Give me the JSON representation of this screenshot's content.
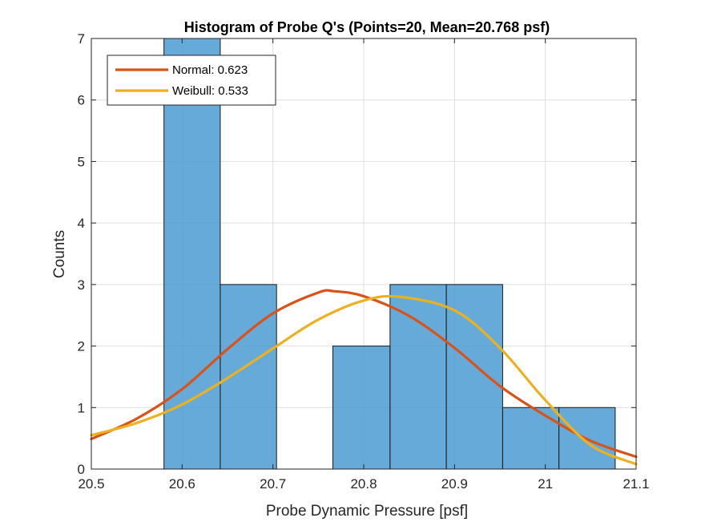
{
  "chart_data": {
    "type": "bar",
    "title": "Histogram of Probe Q's (Points=20, Mean=20.768 psf)",
    "xlabel": "Probe Dynamic Pressure [psf]",
    "ylabel": "Counts",
    "xlim": [
      20.5,
      21.1
    ],
    "ylim": [
      0,
      7
    ],
    "xticks": [
      {
        "v": 20.5,
        "label": "20.5"
      },
      {
        "v": 20.6,
        "label": "20.6"
      },
      {
        "v": 20.7,
        "label": "20.7"
      },
      {
        "v": 20.8,
        "label": "20.8"
      },
      {
        "v": 20.9,
        "label": "20.9"
      },
      {
        "v": 21.0,
        "label": "21"
      },
      {
        "v": 21.1,
        "label": "21.1"
      }
    ],
    "yticks": [
      {
        "v": 0,
        "label": "0"
      },
      {
        "v": 1,
        "label": "1"
      },
      {
        "v": 2,
        "label": "2"
      },
      {
        "v": 3,
        "label": "3"
      },
      {
        "v": 4,
        "label": "4"
      },
      {
        "v": 5,
        "label": "5"
      },
      {
        "v": 6,
        "label": "6"
      },
      {
        "v": 7,
        "label": "7"
      }
    ],
    "grid": true,
    "bins": [
      {
        "x0": 20.58,
        "x1": 20.642,
        "count": 7
      },
      {
        "x0": 20.642,
        "x1": 20.704,
        "count": 3
      },
      {
        "x0": 20.704,
        "x1": 20.766,
        "count": 0
      },
      {
        "x0": 20.766,
        "x1": 20.829,
        "count": 2
      },
      {
        "x0": 20.829,
        "x1": 20.891,
        "count": 3
      },
      {
        "x0": 20.891,
        "x1": 20.953,
        "count": 3
      },
      {
        "x0": 20.953,
        "x1": 21.015,
        "count": 1
      },
      {
        "x0": 21.015,
        "x1": 21.077,
        "count": 1
      }
    ],
    "bar_color": "#4b9bd2",
    "fits": [
      {
        "name": "Normal: 0.623",
        "color": "#d95319",
        "x": [
          20.5,
          20.55,
          20.6,
          20.65,
          20.7,
          20.75,
          20.768,
          20.8,
          20.85,
          20.9,
          20.95,
          21.0,
          21.05,
          21.1
        ],
        "y": [
          0.49,
          0.82,
          1.3,
          1.95,
          2.53,
          2.87,
          2.89,
          2.81,
          2.49,
          1.97,
          1.35,
          0.87,
          0.46,
          0.2
        ]
      },
      {
        "name": "Weibull: 0.533",
        "color": "#edb120",
        "x": [
          20.5,
          20.55,
          20.6,
          20.65,
          20.7,
          20.75,
          20.8,
          20.84,
          20.9,
          20.95,
          21.0,
          21.05,
          21.1
        ],
        "y": [
          0.55,
          0.75,
          1.05,
          1.48,
          1.96,
          2.43,
          2.74,
          2.8,
          2.58,
          1.97,
          1.12,
          0.39,
          0.08
        ]
      }
    ],
    "legend_position": "top-left"
  }
}
